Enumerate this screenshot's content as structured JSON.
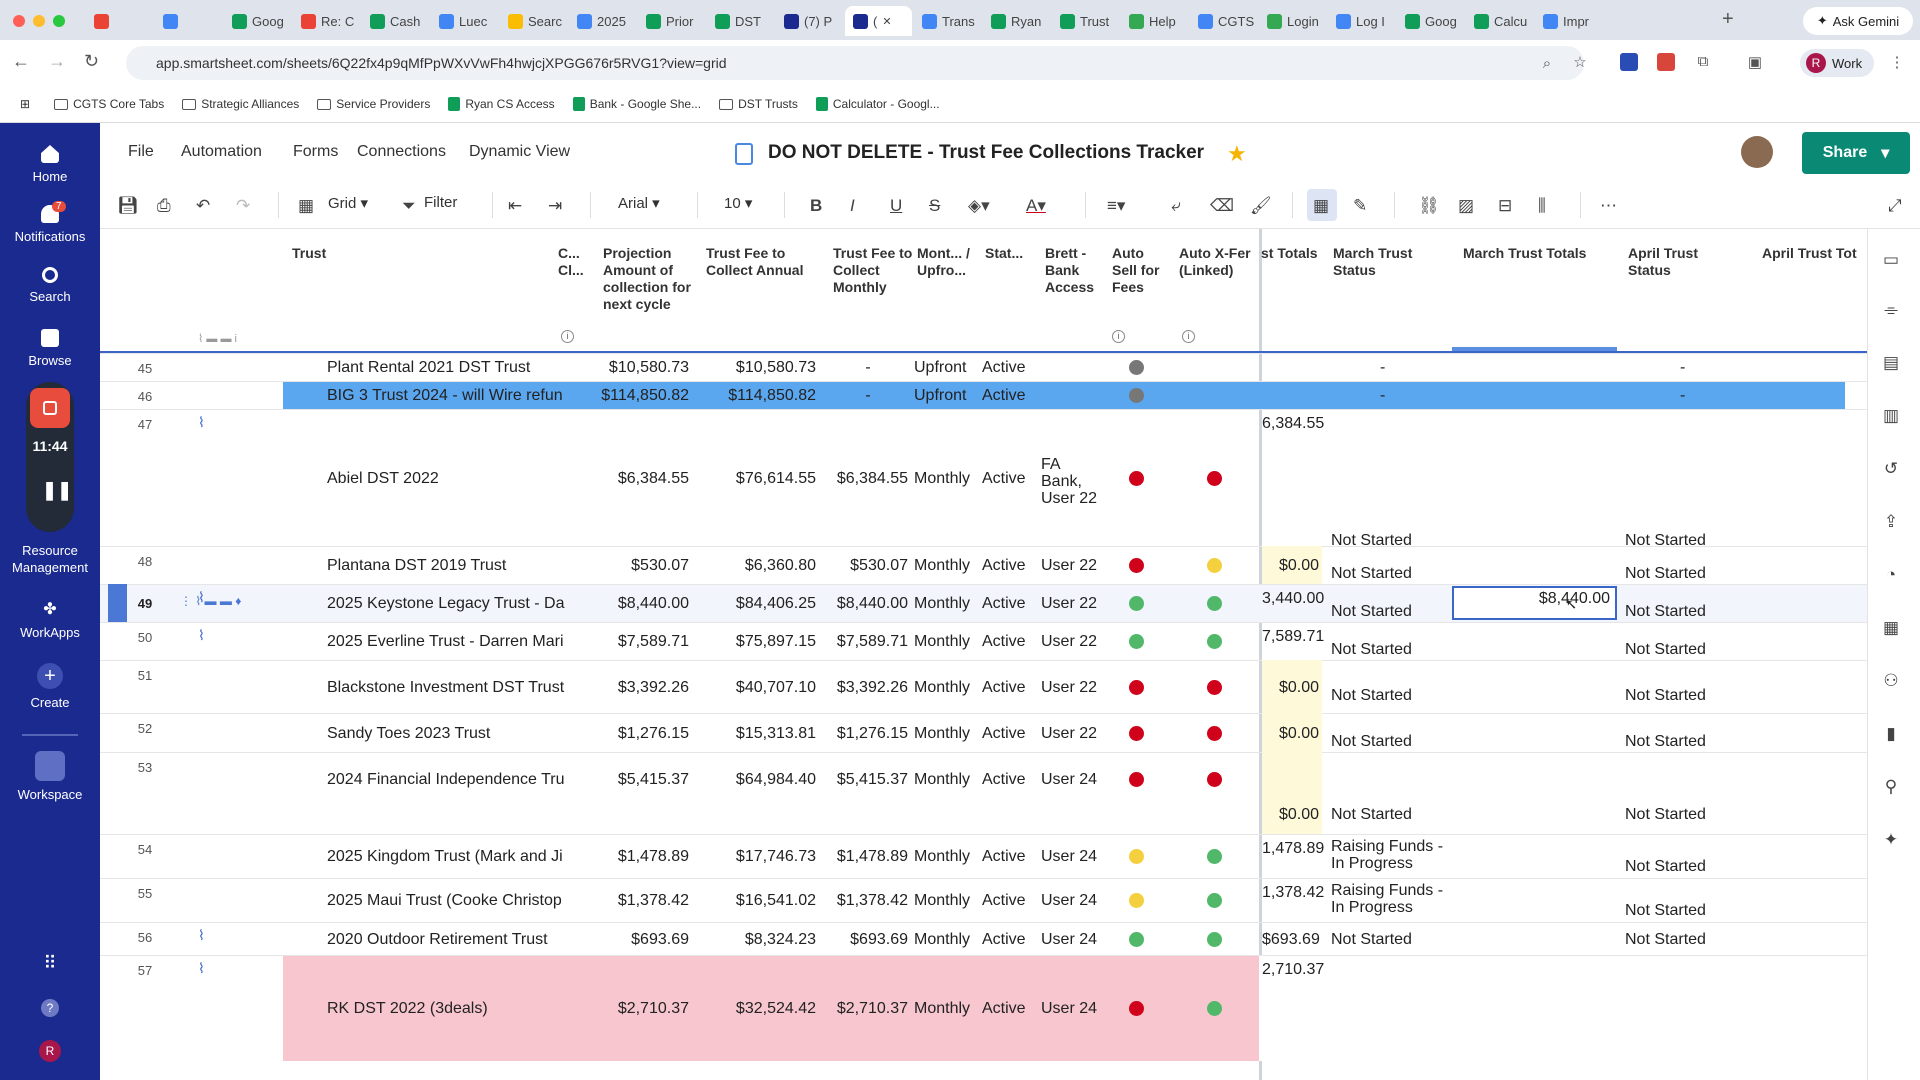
{
  "browser": {
    "tabs": [
      {
        "label": "",
        "icon": "gmail-icon",
        "color": "#ea4335"
      },
      {
        "label": "",
        "icon": "doc-icon",
        "color": "#4285f4"
      },
      {
        "label": "Goog",
        "icon": "gdocs-icon",
        "color": "#0f9d58"
      },
      {
        "label": "Re: C",
        "icon": "gmail-icon",
        "color": "#ea4335"
      },
      {
        "label": "Cash",
        "icon": "sheet-icon",
        "color": "#0f9d58"
      },
      {
        "label": "Luec",
        "icon": "cal-icon",
        "color": "#4285f4"
      },
      {
        "label": "Searc",
        "icon": "drive-icon",
        "color": "#fbbc04"
      },
      {
        "label": "2025",
        "icon": "doc-icon",
        "color": "#4285f4"
      },
      {
        "label": "Prior",
        "icon": "sheet-icon",
        "color": "#0f9d58"
      },
      {
        "label": "DST",
        "icon": "sheet-icon",
        "color": "#0f9d58"
      },
      {
        "label": "(7) P",
        "icon": "smartsheet-icon",
        "color": "#1b2a8f"
      },
      {
        "label": "(",
        "icon": "smartsheet-icon",
        "color": "#1b2a8f"
      },
      {
        "label": "Trans",
        "icon": "doc-icon",
        "color": "#4285f4"
      },
      {
        "label": "Ryan",
        "icon": "sheet-icon",
        "color": "#0f9d58"
      },
      {
        "label": "Trust",
        "icon": "sheet-icon",
        "color": "#0f9d58"
      },
      {
        "label": "Help",
        "icon": "help-icon",
        "color": "#34a853"
      },
      {
        "label": "CGTS",
        "icon": "doc-icon",
        "color": "#4285f4"
      },
      {
        "label": "Login",
        "icon": "login-icon",
        "color": "#34a853"
      },
      {
        "label": "Log I",
        "icon": "check-icon",
        "color": "#4285f4"
      },
      {
        "label": "Goog",
        "icon": "gdocs-icon",
        "color": "#0f9d58"
      },
      {
        "label": "Calcu",
        "icon": "sheet-icon",
        "color": "#0f9d58"
      },
      {
        "label": "Impr",
        "icon": "cal-icon",
        "color": "#4285f4"
      }
    ],
    "ask_gemini": "Ask Gemini",
    "url": "app.smartsheet.com/sheets/6Q22fx4p9qMfPpWXvVwFh4hwjcjXPGG676r5RVG1?view=grid",
    "profile_initial": "R",
    "profile_label": "Work",
    "bookmarks": [
      {
        "label": "CGTS Core Tabs",
        "type": "folder"
      },
      {
        "label": "Strategic Alliances",
        "type": "folder"
      },
      {
        "label": "Service Providers",
        "type": "folder"
      },
      {
        "label": "Ryan CS Access",
        "type": "sheet"
      },
      {
        "label": "Bank - Google She...",
        "type": "sheet"
      },
      {
        "label": "DST Trusts",
        "type": "folder"
      },
      {
        "label": "Calculator - Googl...",
        "type": "sheet"
      }
    ]
  },
  "sidebar": {
    "home": "Home",
    "notifications": "Notifications",
    "notif_count": "7",
    "search": "Search",
    "browse": "Browse",
    "recording_time": "11:44",
    "resource_management": "Resource Management",
    "workapps": "WorkApps",
    "create": "Create",
    "workspace": "Workspace",
    "user_initial": "R"
  },
  "app": {
    "menus": [
      "File",
      "Automation",
      "Forms",
      "Connections",
      "Dynamic View"
    ],
    "title": "DO NOT DELETE - Trust Fee Collections Tracker",
    "share": "Share",
    "toolbar": {
      "view": "Grid",
      "filter": "Filter",
      "font": "Arial",
      "font_size": "10"
    }
  },
  "columns": [
    "Trust",
    "C... Cl...",
    "Projection Amount of collection for next cycle",
    "Trust Fee to Collect Annual",
    "Trust Fee to Collect Monthly",
    "Mont... / Upfro...",
    "Stat...",
    "Brett - Bank Access",
    "Auto Sell for Fees",
    "Auto X-Fer (Linked)",
    "st Totals",
    "March Trust Status",
    "March Trust Totals",
    "April Trust Status",
    "April Trust Tot"
  ],
  "rows": [
    {
      "n": "45",
      "trust": "Plant Rental 2021 DST Trust",
      "proj": "$10,580.73",
      "annual": "$10,580.73",
      "monthly": "-",
      "freq": "Upfront",
      "status": "Active",
      "bank": "",
      "auto_sell": "gray",
      "auto_xfer": "",
      "totals": "",
      "mar_status": "-",
      "mar_totals": "",
      "apr_status": "-"
    },
    {
      "n": "46",
      "trust": "BIG 3 Trust 2024 - will Wire refun",
      "proj": "$114,850.82",
      "annual": "$114,850.82",
      "monthly": "-",
      "freq": "Upfront",
      "status": "Active",
      "bank": "",
      "auto_sell": "gray",
      "auto_xfer": "",
      "totals": "",
      "mar_status": "-",
      "mar_totals": "",
      "apr_status": "-"
    },
    {
      "n": "47",
      "trust": "Abiel DST 2022",
      "proj": "$6,384.55",
      "annual": "$76,614.55",
      "monthly": "$6,384.55",
      "freq": "Monthly",
      "status": "Active",
      "bank": "FA Bank, User 22",
      "auto_sell": "red",
      "auto_xfer": "red",
      "totals": "6,384.55",
      "mar_status": "Not Started",
      "mar_totals": "",
      "apr_status": "Not Started"
    },
    {
      "n": "48",
      "trust": "Plantana DST 2019 Trust",
      "proj": "$530.07",
      "annual": "$6,360.80",
      "monthly": "$530.07",
      "freq": "Monthly",
      "status": "Active",
      "bank": "User 22",
      "auto_sell": "red",
      "auto_xfer": "yellow",
      "totals": "$0.00",
      "mar_status": "Not Started",
      "mar_totals": "",
      "apr_status": "Not Started"
    },
    {
      "n": "49",
      "trust": "2025 Keystone Legacy Trust - Da",
      "proj": "$8,440.00",
      "annual": "$84,406.25",
      "monthly": "$8,440.00",
      "freq": "Monthly",
      "status": "Active",
      "bank": "User 22",
      "auto_sell": "green",
      "auto_xfer": "green",
      "totals": "3,440.00",
      "mar_status": "Not Started",
      "mar_totals": "$8,440.00",
      "apr_status": "Not Started"
    },
    {
      "n": "50",
      "trust": "2025 Everline Trust - Darren Mari",
      "proj": "$7,589.71",
      "annual": "$75,897.15",
      "monthly": "$7,589.71",
      "freq": "Monthly",
      "status": "Active",
      "bank": "User 22",
      "auto_sell": "green",
      "auto_xfer": "green",
      "totals": "7,589.71",
      "mar_status": "Not Started",
      "mar_totals": "",
      "apr_status": "Not Started"
    },
    {
      "n": "51",
      "trust": "Blackstone Investment DST Trust",
      "proj": "$3,392.26",
      "annual": "$40,707.10",
      "monthly": "$3,392.26",
      "freq": "Monthly",
      "status": "Active",
      "bank": "User 22",
      "auto_sell": "red",
      "auto_xfer": "red",
      "totals": "$0.00",
      "mar_status": "Not Started",
      "mar_totals": "",
      "apr_status": "Not Started"
    },
    {
      "n": "52",
      "trust": "Sandy Toes 2023 Trust",
      "proj": "$1,276.15",
      "annual": "$15,313.81",
      "monthly": "$1,276.15",
      "freq": "Monthly",
      "status": "Active",
      "bank": "User 22",
      "auto_sell": "red",
      "auto_xfer": "red",
      "totals": "$0.00",
      "mar_status": "Not Started",
      "mar_totals": "",
      "apr_status": "Not Started"
    },
    {
      "n": "53",
      "trust": "2024 Financial Independence Tru",
      "proj": "$5,415.37",
      "annual": "$64,984.40",
      "monthly": "$5,415.37",
      "freq": "Monthly",
      "status": "Active",
      "bank": "User 24",
      "auto_sell": "red",
      "auto_xfer": "red",
      "totals": "$0.00",
      "mar_status": "Not Started",
      "mar_totals": "",
      "apr_status": "Not Started"
    },
    {
      "n": "54",
      "trust": "2025 Kingdom Trust (Mark and Ji",
      "proj": "$1,478.89",
      "annual": "$17,746.73",
      "monthly": "$1,478.89",
      "freq": "Monthly",
      "status": "Active",
      "bank": "User 24",
      "auto_sell": "yellow",
      "auto_xfer": "green",
      "totals": "1,478.89",
      "mar_status": "Raising Funds - In Progress",
      "mar_totals": "",
      "apr_status": "Not Started"
    },
    {
      "n": "55",
      "trust": "2025 Maui Trust (Cooke Christop",
      "proj": "$1,378.42",
      "annual": "$16,541.02",
      "monthly": "$1,378.42",
      "freq": "Monthly",
      "status": "Active",
      "bank": "User 24",
      "auto_sell": "yellow",
      "auto_xfer": "green",
      "totals": "1,378.42",
      "mar_status": "Raising Funds - In Progress",
      "mar_totals": "",
      "apr_status": "Not Started"
    },
    {
      "n": "56",
      "trust": "2020 Outdoor Retirement Trust",
      "proj": "$693.69",
      "annual": "$8,324.23",
      "monthly": "$693.69",
      "freq": "Monthly",
      "status": "Active",
      "bank": "User 24",
      "auto_sell": "green",
      "auto_xfer": "green",
      "totals": "$693.69",
      "mar_status": "Not Started",
      "mar_totals": "",
      "apr_status": "Not Started"
    },
    {
      "n": "57",
      "trust": "RK DST 2022 (3deals)",
      "proj": "$2,710.37",
      "annual": "$32,524.42",
      "monthly": "$2,710.37",
      "freq": "Monthly",
      "status": "Active",
      "bank": "User 24",
      "auto_sell": "red",
      "auto_xfer": "green",
      "totals": "2,710.37",
      "mar_status": "",
      "mar_totals": "",
      "apr_status": ""
    }
  ],
  "colors": {
    "sidebar": "#1b2a8f",
    "share": "#0a8a74",
    "selected_row": "#5aa7f0",
    "pink_row": "#f7c6cf",
    "yellow_col": "#fdf9d9"
  }
}
